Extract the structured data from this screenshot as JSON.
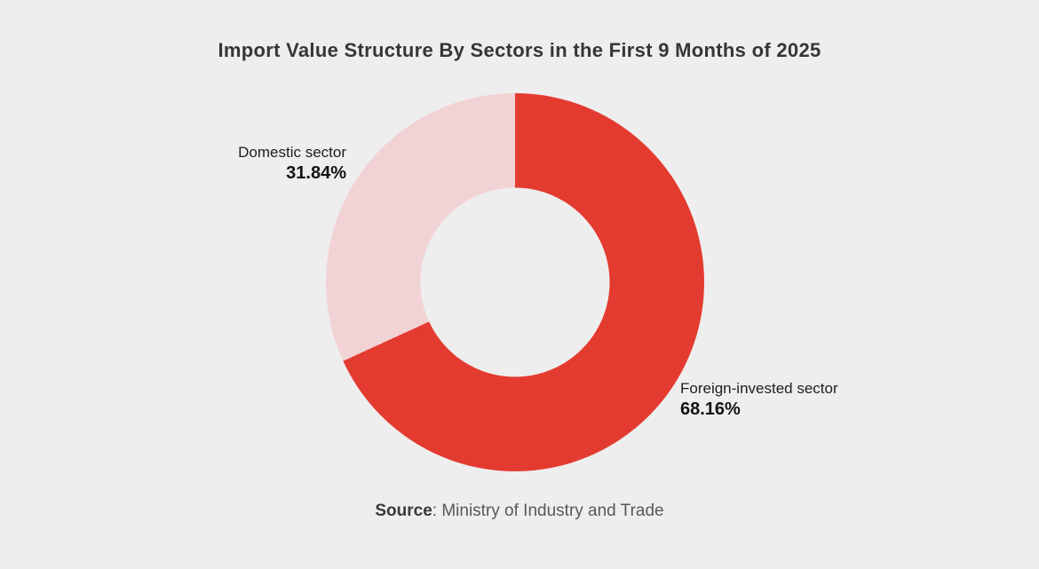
{
  "title": "Import Value Structure By Sectors in the First 9 Months of 2025",
  "source": {
    "label": "Source",
    "text": ": Ministry of Industry and Trade"
  },
  "colors": {
    "background": "#EEEEEE",
    "foreign_slice": "#E43B30",
    "domestic_slice": "#F2D3D5",
    "title_text": "#363636",
    "label_text": "#1E1E1E",
    "source_text": "#58585A"
  },
  "chart_data": {
    "type": "pie",
    "subtype": "donut",
    "title": "Import Value Structure By Sectors in the First 9 Months of 2025",
    "start_angle_deg": 0,
    "direction": "clockwise",
    "hole_ratio": 0.5,
    "legend_position": "none",
    "value_suffix": "%",
    "slices": [
      {
        "label": "Foreign-invested sector",
        "value": 68.16,
        "display": "68.16%",
        "color": "#E43B30"
      },
      {
        "label": "Domestic sector",
        "value": 31.84,
        "display": "31.84%",
        "color": "#F2D3D5"
      }
    ],
    "source": "Ministry of Industry and Trade"
  }
}
